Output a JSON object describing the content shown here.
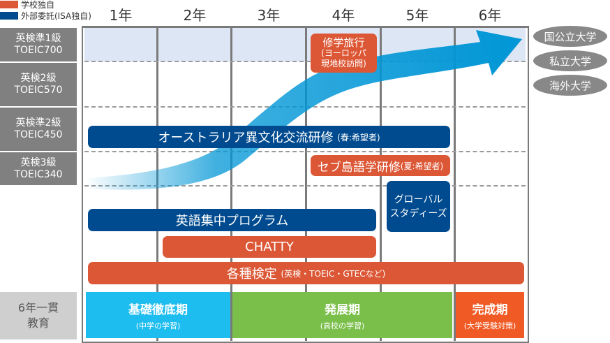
{
  "legend": [
    {
      "label": "学校独自",
      "color": "#dc5735"
    },
    {
      "label": "外部委託(ISA独自)",
      "color": "#004b8f"
    }
  ],
  "years": [
    "1年",
    "2年",
    "3年",
    "4年",
    "5年",
    "6年"
  ],
  "levels": [
    {
      "line1": "英検準1級",
      "line2": "TOEIC700"
    },
    {
      "line1": "英検2級",
      "line2": "TOEIC570"
    },
    {
      "line1": "英検準2級",
      "line2": "TOEIC450"
    },
    {
      "line1": "英検3級",
      "line2": "TOEIC340"
    }
  ],
  "programs": {
    "trip": {
      "title": "修学旅行",
      "sub1": "(ヨーロッパ",
      "sub2": "現地校訪問)"
    },
    "australia": {
      "title": "オーストラリア異文化交流研修",
      "note": "(春:希望者)"
    },
    "cebu": {
      "title": "セブ島語学研修",
      "note": "(夏:希望者)"
    },
    "global": {
      "line1": "グローバル",
      "line2": "スタディーズ"
    },
    "intensive": "英語集中プログラム",
    "chatty": "CHATTY",
    "exams": {
      "title": "各種検定",
      "note": "(英検・TOEIC・GTECなど)"
    }
  },
  "destinations": [
    "国公立大学",
    "私立大学",
    "海外大学"
  ],
  "phases": {
    "label1": "6年一貫",
    "label2": "教育",
    "items": [
      {
        "title": "基礎徹底期",
        "sub": "(中学の学習)",
        "color": "#1ebdf0"
      },
      {
        "title": "発展期",
        "sub": "(高校の学習)",
        "color": "#7bbf4b"
      },
      {
        "title": "完成期",
        "sub": "(大学受験対策)",
        "color": "#f05a24"
      }
    ]
  },
  "colors": {
    "school": "#dc5735",
    "external": "#004b8f",
    "arrow": "#0096d6",
    "grid": "#7a7a7a"
  }
}
